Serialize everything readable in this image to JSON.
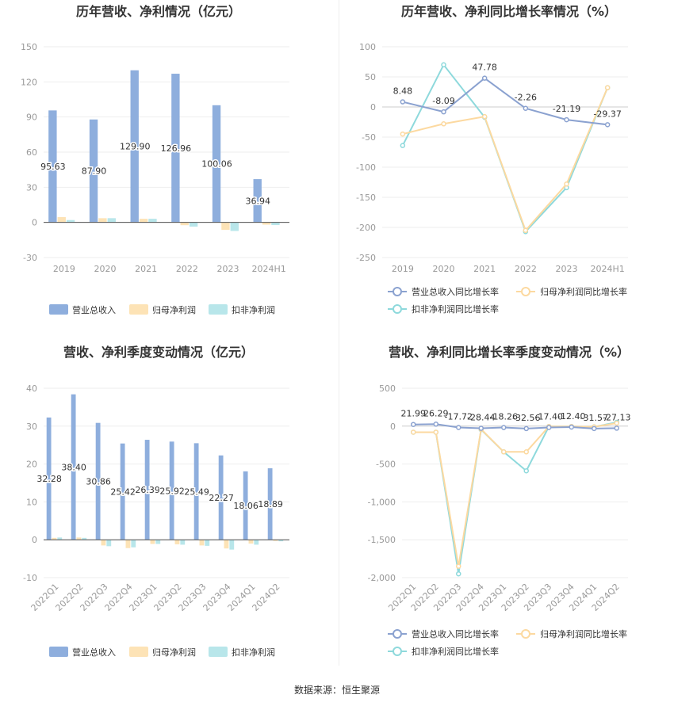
{
  "footer": {
    "source": "数据来源：恒生聚源"
  },
  "chart_data": [
    {
      "id": "annual-bars",
      "type": "bar",
      "title": "历年营收、净利情况（亿元）",
      "categories": [
        "2019",
        "2020",
        "2021",
        "2022",
        "2023",
        "2024H1"
      ],
      "ylim": [
        -30,
        150
      ],
      "yticks": [
        150,
        120,
        90,
        60,
        30,
        0,
        -30
      ],
      "series": [
        {
          "name": "营业总收入",
          "color": "#8eaedd",
          "values": [
            95.63,
            87.9,
            129.9,
            126.96,
            100.06,
            36.94
          ],
          "labels": [
            "95.63",
            "87.90",
            "129.90",
            "126.96",
            "100.06",
            "36.94"
          ]
        },
        {
          "name": "归母净利润",
          "color": "#fde3b6",
          "values": [
            4.5,
            3.6,
            3.1,
            -2.4,
            -6.4,
            -1.9
          ]
        },
        {
          "name": "扣非净利润",
          "color": "#b8e6ea",
          "values": [
            2.0,
            3.6,
            3.1,
            -3.6,
            -7.3,
            -2.3
          ]
        }
      ]
    },
    {
      "id": "annual-growth",
      "type": "line",
      "title": "历年营收、净利同比增长率情况（%）",
      "categories": [
        "2019",
        "2020",
        "2021",
        "2022",
        "2023",
        "2024H1"
      ],
      "ylim": [
        -250,
        100
      ],
      "yticks": [
        100,
        50,
        0,
        -50,
        -100,
        -150,
        -200,
        -250
      ],
      "series": [
        {
          "name": "营业总收入同比增长率",
          "color": "#8ba2d0",
          "values": [
            8.48,
            -8.09,
            47.78,
            -2.26,
            -21.19,
            -29.37
          ],
          "labels": [
            "8.48",
            "-8.09",
            "47.78",
            "-2.26",
            "-21.19",
            "-29.37"
          ]
        },
        {
          "name": "归母净利润同比增长率",
          "color": "#fcd9a0",
          "values": [
            -45,
            -28,
            -16,
            -205,
            -128,
            32
          ]
        },
        {
          "name": "扣非净利润同比增长率",
          "color": "#8ed9dc",
          "values": [
            -64,
            70,
            -17,
            -207,
            -134,
            32
          ]
        }
      ]
    },
    {
      "id": "quarterly-bars",
      "type": "bar",
      "title": "营收、净利季度变动情况（亿元）",
      "categories": [
        "2022Q1",
        "2022Q2",
        "2022Q3",
        "2022Q4",
        "2023Q1",
        "2023Q2",
        "2023Q3",
        "2023Q4",
        "2024Q1",
        "2024Q2"
      ],
      "ylim": [
        -10,
        40
      ],
      "yticks": [
        40,
        30,
        20,
        10,
        0,
        -10
      ],
      "series": [
        {
          "name": "营业总收入",
          "color": "#8eaedd",
          "values": [
            32.28,
            38.4,
            30.86,
            25.42,
            26.39,
            25.92,
            25.49,
            22.27,
            18.06,
            18.89
          ],
          "labels": [
            "32.28",
            "38.40",
            "30.86",
            "25.42",
            "26.39",
            "25.92",
            "25.49",
            "22.27",
            "18.06",
            "18.89"
          ]
        },
        {
          "name": "归母净利润",
          "color": "#fde3b6",
          "values": [
            0.5,
            0.6,
            -1.5,
            -2.2,
            -1.1,
            -1.2,
            -1.5,
            -2.3,
            -1.0,
            -0.3
          ]
        },
        {
          "name": "扣非净利润",
          "color": "#b8e6ea",
          "values": [
            0.6,
            0.5,
            -1.7,
            -2.0,
            -1.1,
            -1.3,
            -1.6,
            -2.6,
            -1.3,
            -0.4
          ]
        }
      ]
    },
    {
      "id": "quarterly-growth",
      "type": "line",
      "title": "营收、净利同比增长率季度变动情况（%）",
      "categories": [
        "2022Q1",
        "2022Q2",
        "2022Q3",
        "2022Q4",
        "2023Q1",
        "2023Q2",
        "2023Q3",
        "2023Q4",
        "2024Q1",
        "2024Q2"
      ],
      "ylim": [
        -2000,
        500
      ],
      "yticks": [
        500,
        0,
        -500,
        -1000,
        -1500,
        -2000
      ],
      "ytick_labels": [
        "500",
        "0",
        "-500",
        "-1,000",
        "-1,500",
        "-2,000"
      ],
      "series": [
        {
          "name": "营业总收入同比增长率",
          "color": "#8ba2d0",
          "values": [
            21.99,
            26.29,
            -17.72,
            -28.44,
            -18.26,
            -32.56,
            -17.4,
            -12.4,
            -31.57,
            -27.13
          ],
          "labels": [
            "21.99",
            "26.29",
            "-17.72",
            "-28.44",
            "-18.26",
            "-32.56",
            "-17.40",
            "-12.40",
            "-31.57",
            "-27.13"
          ]
        },
        {
          "name": "归母净利润同比增长率",
          "color": "#fcd9a0",
          "values": [
            -80,
            -80,
            -1850,
            -40,
            -340,
            -340,
            -5,
            -5,
            -10,
            40
          ]
        },
        {
          "name": "扣非净利润同比增长率",
          "color": "#8ed9dc",
          "values": [
            -80,
            -80,
            -1950,
            -45,
            -340,
            -590,
            -5,
            -5,
            -10,
            50
          ]
        }
      ]
    }
  ]
}
